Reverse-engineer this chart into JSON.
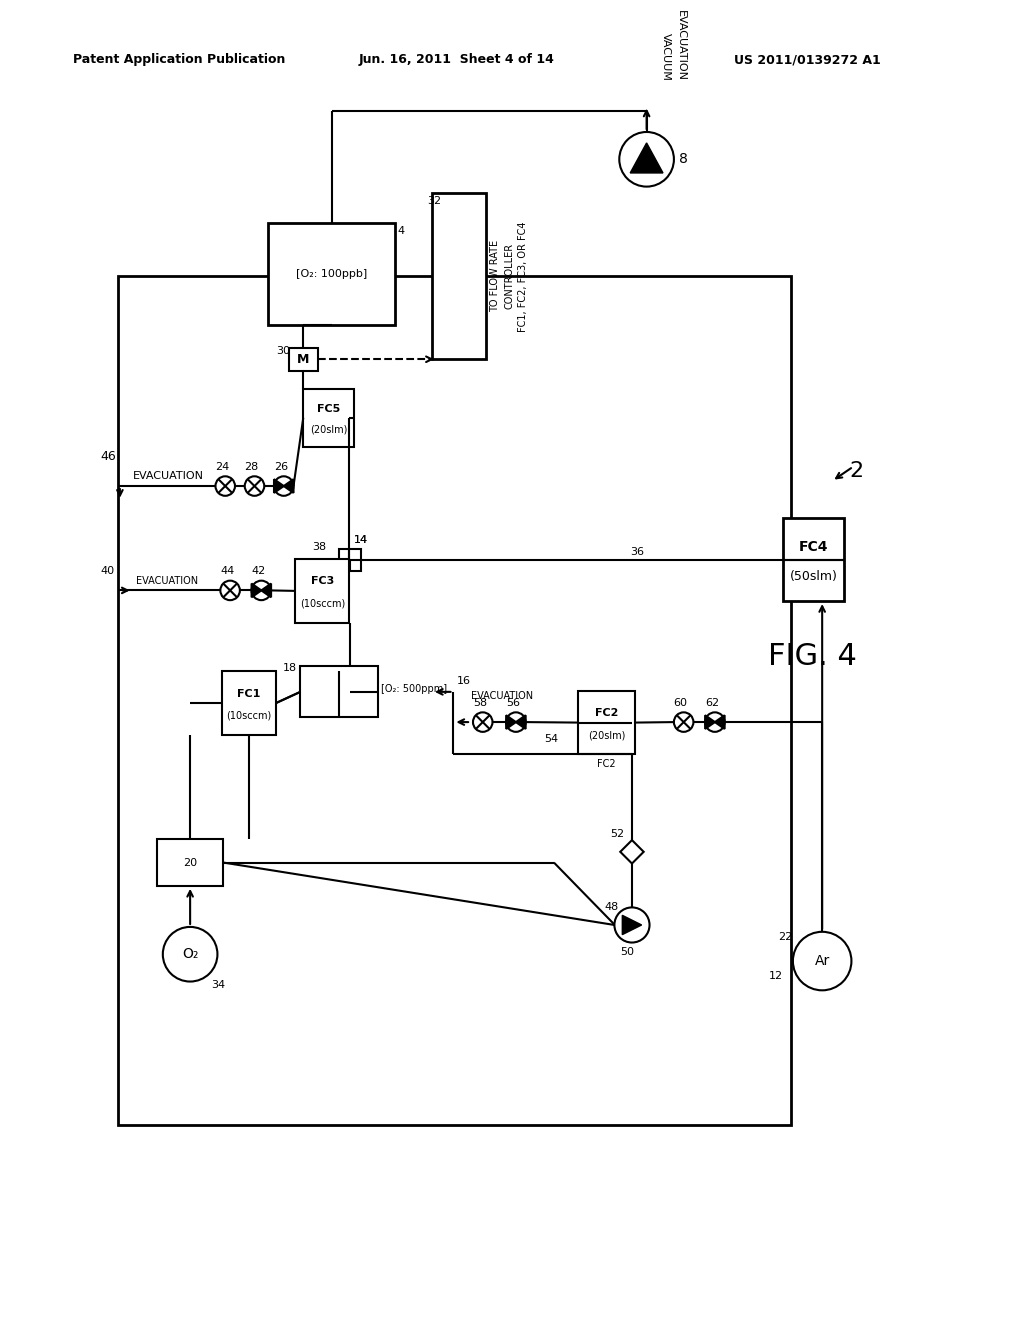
{
  "header_left": "Patent Application Publication",
  "header_center": "Jun. 16, 2011  Sheet 4 of 14",
  "header_right": "US 2011/0139272 A1",
  "bg_color": "#ffffff",
  "fig_label": "FIG. 4",
  "system_label": "2"
}
